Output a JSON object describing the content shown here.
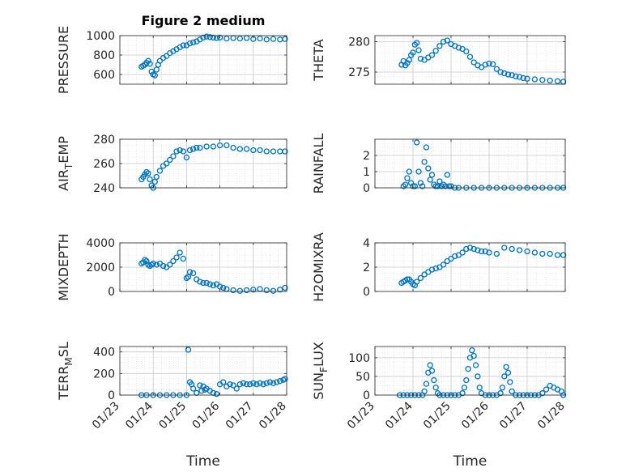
{
  "figure_title": "Figure 2 medium",
  "marker_color": "#0072BD",
  "chart_data": [
    {
      "type": "scatter",
      "id": "pressure",
      "ylabel": "PRESSURE",
      "ylabel_sub": null,
      "ylim": [
        500,
        1000
      ],
      "yticks": [
        600,
        800,
        1000
      ],
      "ytick_labels": [
        "600",
        "800",
        "1000"
      ],
      "xlim": [
        0,
        5
      ],
      "xticks": [
        0,
        1,
        2,
        3,
        4,
        5
      ],
      "xtick_labels": [],
      "xlabel": "",
      "grid": true,
      "minor_grid": true,
      "x": [
        0.65,
        0.7,
        0.75,
        0.8,
        0.85,
        0.9,
        0.95,
        1.0,
        1.05,
        1.1,
        1.15,
        1.2,
        1.3,
        1.4,
        1.5,
        1.6,
        1.7,
        1.8,
        1.9,
        2.0,
        2.1,
        2.2,
        2.3,
        2.4,
        2.5,
        2.6,
        2.7,
        2.8,
        2.9,
        3.0,
        3.2,
        3.4,
        3.6,
        3.8,
        4.0,
        4.2,
        4.4,
        4.6,
        4.8,
        4.95
      ],
      "y": [
        680,
        690,
        700,
        720,
        740,
        710,
        630,
        600,
        590,
        650,
        700,
        740,
        770,
        790,
        820,
        840,
        860,
        880,
        900,
        900,
        920,
        930,
        940,
        960,
        980,
        990,
        985,
        980,
        975,
        980,
        970,
        975,
        970,
        975,
        965,
        970,
        960,
        965,
        960,
        965
      ]
    },
    {
      "type": "scatter",
      "id": "theta",
      "ylabel": "THETA",
      "ylabel_sub": null,
      "ylim": [
        273,
        281
      ],
      "yticks": [
        275,
        280
      ],
      "ytick_labels": [
        "275",
        "280"
      ],
      "xlim": [
        0,
        5
      ],
      "xticks": [
        0,
        1,
        2,
        3,
        4,
        5
      ],
      "xtick_labels": [],
      "xlabel": "",
      "grid": true,
      "minor_grid": true,
      "x": [
        0.7,
        0.75,
        0.8,
        0.85,
        0.9,
        0.95,
        1.0,
        1.05,
        1.1,
        1.15,
        1.2,
        1.3,
        1.4,
        1.5,
        1.6,
        1.7,
        1.8,
        1.9,
        2.0,
        2.1,
        2.2,
        2.3,
        2.4,
        2.5,
        2.6,
        2.7,
        2.8,
        2.9,
        3.0,
        3.1,
        3.2,
        3.3,
        3.4,
        3.5,
        3.6,
        3.7,
        3.8,
        3.9,
        4.0,
        4.2,
        4.4,
        4.6,
        4.8,
        4.95
      ],
      "y": [
        276.2,
        276.8,
        276.1,
        276.5,
        277.0,
        277.8,
        278.2,
        279.5,
        279.8,
        278.6,
        277.2,
        277.0,
        277.4,
        277.8,
        278.5,
        279.3,
        280.0,
        280.2,
        279.6,
        279.3,
        279.0,
        278.8,
        278.4,
        277.5,
        276.6,
        276.1,
        275.8,
        276.2,
        276.4,
        276.3,
        275.5,
        275.0,
        274.8,
        274.6,
        274.5,
        274.3,
        274.2,
        274.0,
        273.9,
        273.8,
        273.7,
        273.6,
        273.5,
        273.4
      ]
    },
    {
      "type": "scatter",
      "id": "air_temp",
      "ylabel": "AIR",
      "ylabel_sub": "T",
      "ylabel_suffix": "EMP",
      "ylim": [
        240,
        280
      ],
      "yticks": [
        240,
        260,
        280
      ],
      "ytick_labels": [
        "240",
        "260",
        "280"
      ],
      "xlim": [
        0,
        5
      ],
      "xticks": [
        0,
        1,
        2,
        3,
        4,
        5
      ],
      "xtick_labels": [],
      "xlabel": "",
      "grid": true,
      "minor_grid": true,
      "x": [
        0.65,
        0.7,
        0.75,
        0.8,
        0.85,
        0.9,
        0.95,
        1.0,
        1.05,
        1.1,
        1.2,
        1.3,
        1.4,
        1.5,
        1.6,
        1.7,
        1.8,
        1.9,
        2.0,
        2.1,
        2.2,
        2.3,
        2.4,
        2.6,
        2.8,
        3.0,
        3.2,
        3.4,
        3.6,
        3.8,
        4.0,
        4.2,
        4.4,
        4.6,
        4.8,
        4.95
      ],
      "y": [
        247,
        249,
        251,
        253,
        252,
        247,
        242,
        240,
        245,
        249,
        254,
        258,
        260,
        263,
        266,
        270,
        271,
        270,
        265,
        271,
        272,
        273,
        273,
        274,
        274,
        275,
        275,
        273,
        272,
        272,
        271,
        271,
        270,
        270,
        270,
        270
      ]
    },
    {
      "type": "scatter",
      "id": "rainfall",
      "ylabel": "RAINFALL",
      "ylabel_sub": null,
      "ylim": [
        0,
        3
      ],
      "yticks": [
        0,
        1,
        2
      ],
      "ytick_labels": [
        "0",
        "1",
        "2"
      ],
      "xlim": [
        0,
        5
      ],
      "xticks": [
        0,
        1,
        2,
        3,
        4,
        5
      ],
      "xtick_labels": [],
      "xlabel": "",
      "grid": true,
      "minor_grid": true,
      "x": [
        0.75,
        0.8,
        0.85,
        0.9,
        0.95,
        1.0,
        1.05,
        1.1,
        1.15,
        1.2,
        1.25,
        1.3,
        1.35,
        1.4,
        1.45,
        1.5,
        1.55,
        1.6,
        1.65,
        1.7,
        1.75,
        1.8,
        1.85,
        1.9,
        1.95,
        2.0,
        2.1,
        2.2,
        2.4,
        2.6,
        2.8,
        3.0,
        3.2,
        3.4,
        3.6,
        3.8,
        4.0,
        4.2,
        4.4,
        4.6,
        4.8,
        4.95
      ],
      "y": [
        0.1,
        0.2,
        0.6,
        1.0,
        0.3,
        0.1,
        0.1,
        2.8,
        1.0,
        0.3,
        0.1,
        1.6,
        2.5,
        1.2,
        0.5,
        0.8,
        0.2,
        0.1,
        0.1,
        0.4,
        0.1,
        0.2,
        0.1,
        0.8,
        0.1,
        0.1,
        0.0,
        0.0,
        0.0,
        0.0,
        0.0,
        0.0,
        0.0,
        0.0,
        0.0,
        0.0,
        0.0,
        0.0,
        0.0,
        0.0,
        0.0,
        0.0
      ]
    },
    {
      "type": "scatter",
      "id": "mixdepth",
      "ylabel": "MIXDEPTH",
      "ylabel_sub": null,
      "ylim": [
        0,
        4000
      ],
      "yticks": [
        0,
        2000,
        4000
      ],
      "ytick_labels": [
        "0",
        "2000",
        "4000"
      ],
      "xlim": [
        0,
        5
      ],
      "xticks": [
        0,
        1,
        2,
        3,
        4,
        5
      ],
      "xtick_labels": [],
      "xlabel": "",
      "grid": true,
      "minor_grid": true,
      "x": [
        0.65,
        0.7,
        0.75,
        0.8,
        0.85,
        0.9,
        0.95,
        1.0,
        1.1,
        1.2,
        1.3,
        1.4,
        1.5,
        1.6,
        1.7,
        1.8,
        1.9,
        2.0,
        2.05,
        2.1,
        2.2,
        2.3,
        2.4,
        2.5,
        2.6,
        2.7,
        2.8,
        2.9,
        3.0,
        3.1,
        3.2,
        3.4,
        3.6,
        3.8,
        4.0,
        4.2,
        4.4,
        4.6,
        4.8,
        4.95
      ],
      "y": [
        2300,
        2400,
        2600,
        2500,
        2200,
        2100,
        2200,
        2300,
        2200,
        2300,
        2100,
        2000,
        2200,
        2500,
        2800,
        3200,
        2700,
        1100,
        1200,
        1600,
        1500,
        1000,
        800,
        700,
        700,
        600,
        500,
        600,
        400,
        300,
        200,
        100,
        50,
        100,
        150,
        200,
        100,
        50,
        150,
        300
      ]
    },
    {
      "type": "scatter",
      "id": "h2omixra",
      "ylabel": "H2OMIXRA",
      "ylabel_sub": null,
      "ylim": [
        0,
        4
      ],
      "yticks": [
        0,
        2,
        4
      ],
      "ytick_labels": [
        "0",
        "2",
        "4"
      ],
      "xlim": [
        0,
        5
      ],
      "xticks": [
        0,
        1,
        2,
        3,
        4,
        5
      ],
      "xtick_labels": [],
      "xlabel": "",
      "grid": true,
      "minor_grid": true,
      "x": [
        0.7,
        0.75,
        0.8,
        0.85,
        0.9,
        0.95,
        1.0,
        1.05,
        1.1,
        1.2,
        1.3,
        1.4,
        1.5,
        1.6,
        1.7,
        1.8,
        1.9,
        2.0,
        2.1,
        2.2,
        2.3,
        2.4,
        2.5,
        2.6,
        2.7,
        2.8,
        2.9,
        3.0,
        3.2,
        3.4,
        3.6,
        3.8,
        4.0,
        4.2,
        4.4,
        4.6,
        4.8,
        4.95
      ],
      "y": [
        0.7,
        0.8,
        0.9,
        1.0,
        1.0,
        0.8,
        0.6,
        0.5,
        0.8,
        1.1,
        1.4,
        1.6,
        1.8,
        1.9,
        2.0,
        2.2,
        2.5,
        2.7,
        2.9,
        3.0,
        3.2,
        3.5,
        3.6,
        3.5,
        3.4,
        3.3,
        3.3,
        3.2,
        3.1,
        3.6,
        3.5,
        3.4,
        3.3,
        3.2,
        3.1,
        3.1,
        3.0,
        3.0
      ]
    },
    {
      "type": "scatter",
      "id": "terr_msl",
      "ylabel": "TERR",
      "ylabel_sub": "M",
      "ylabel_suffix": "SL",
      "ylim": [
        0,
        450
      ],
      "yticks": [
        0,
        200,
        400
      ],
      "ytick_labels": [
        "0",
        "200",
        "400"
      ],
      "xlim": [
        0,
        5
      ],
      "xticks": [
        0,
        1,
        2,
        3,
        4,
        5
      ],
      "xtick_labels": [
        "01/23",
        "01/24",
        "01/25",
        "01/26",
        "01/27",
        "01/28"
      ],
      "xlabel": "Time",
      "grid": true,
      "minor_grid": true,
      "x": [
        0.65,
        0.8,
        1.0,
        1.2,
        1.4,
        1.6,
        1.8,
        2.0,
        2.05,
        2.1,
        2.15,
        2.2,
        2.3,
        2.4,
        2.45,
        2.5,
        2.55,
        2.6,
        2.7,
        2.8,
        2.9,
        3.0,
        3.1,
        3.2,
        3.3,
        3.4,
        3.5,
        3.6,
        3.7,
        3.8,
        3.9,
        4.0,
        4.1,
        4.2,
        4.3,
        4.4,
        4.5,
        4.6,
        4.7,
        4.8,
        4.9,
        4.95
      ],
      "y": [
        0,
        0,
        0,
        0,
        0,
        0,
        0,
        0,
        420,
        120,
        100,
        60,
        20,
        90,
        40,
        80,
        50,
        60,
        40,
        20,
        10,
        100,
        120,
        80,
        100,
        90,
        60,
        100,
        110,
        100,
        100,
        110,
        100,
        110,
        100,
        110,
        120,
        110,
        120,
        130,
        140,
        150
      ]
    },
    {
      "type": "scatter",
      "id": "sun_flux",
      "ylabel": "SUN",
      "ylabel_sub": "F",
      "ylabel_suffix": "LUX",
      "ylim": [
        0,
        130
      ],
      "yticks": [
        0,
        50,
        100
      ],
      "ytick_labels": [
        "0",
        "50",
        "100"
      ],
      "xlim": [
        0,
        5
      ],
      "xticks": [
        0,
        1,
        2,
        3,
        4,
        5
      ],
      "xtick_labels": [
        "01/23",
        "01/24",
        "01/25",
        "01/26",
        "01/27",
        "01/28"
      ],
      "xlabel": "Time",
      "grid": true,
      "minor_grid": true,
      "x": [
        0.65,
        0.75,
        0.85,
        0.95,
        1.05,
        1.15,
        1.25,
        1.3,
        1.35,
        1.4,
        1.45,
        1.5,
        1.55,
        1.6,
        1.65,
        1.7,
        1.8,
        1.9,
        2.0,
        2.1,
        2.2,
        2.3,
        2.35,
        2.4,
        2.45,
        2.5,
        2.55,
        2.6,
        2.65,
        2.7,
        2.75,
        2.8,
        2.9,
        3.0,
        3.1,
        3.2,
        3.3,
        3.35,
        3.4,
        3.45,
        3.5,
        3.55,
        3.6,
        3.7,
        3.8,
        3.9,
        4.0,
        4.1,
        4.2,
        4.3,
        4.4,
        4.5,
        4.6,
        4.7,
        4.8,
        4.9,
        4.95
      ],
      "y": [
        0,
        0,
        0,
        0,
        0,
        0,
        0,
        10,
        30,
        60,
        80,
        65,
        40,
        20,
        5,
        0,
        0,
        0,
        0,
        0,
        0,
        5,
        20,
        40,
        70,
        100,
        120,
        105,
        80,
        50,
        20,
        5,
        0,
        0,
        0,
        0,
        5,
        20,
        50,
        75,
        60,
        35,
        10,
        0,
        0,
        0,
        0,
        0,
        0,
        0,
        5,
        15,
        25,
        20,
        15,
        10,
        0
      ]
    }
  ]
}
